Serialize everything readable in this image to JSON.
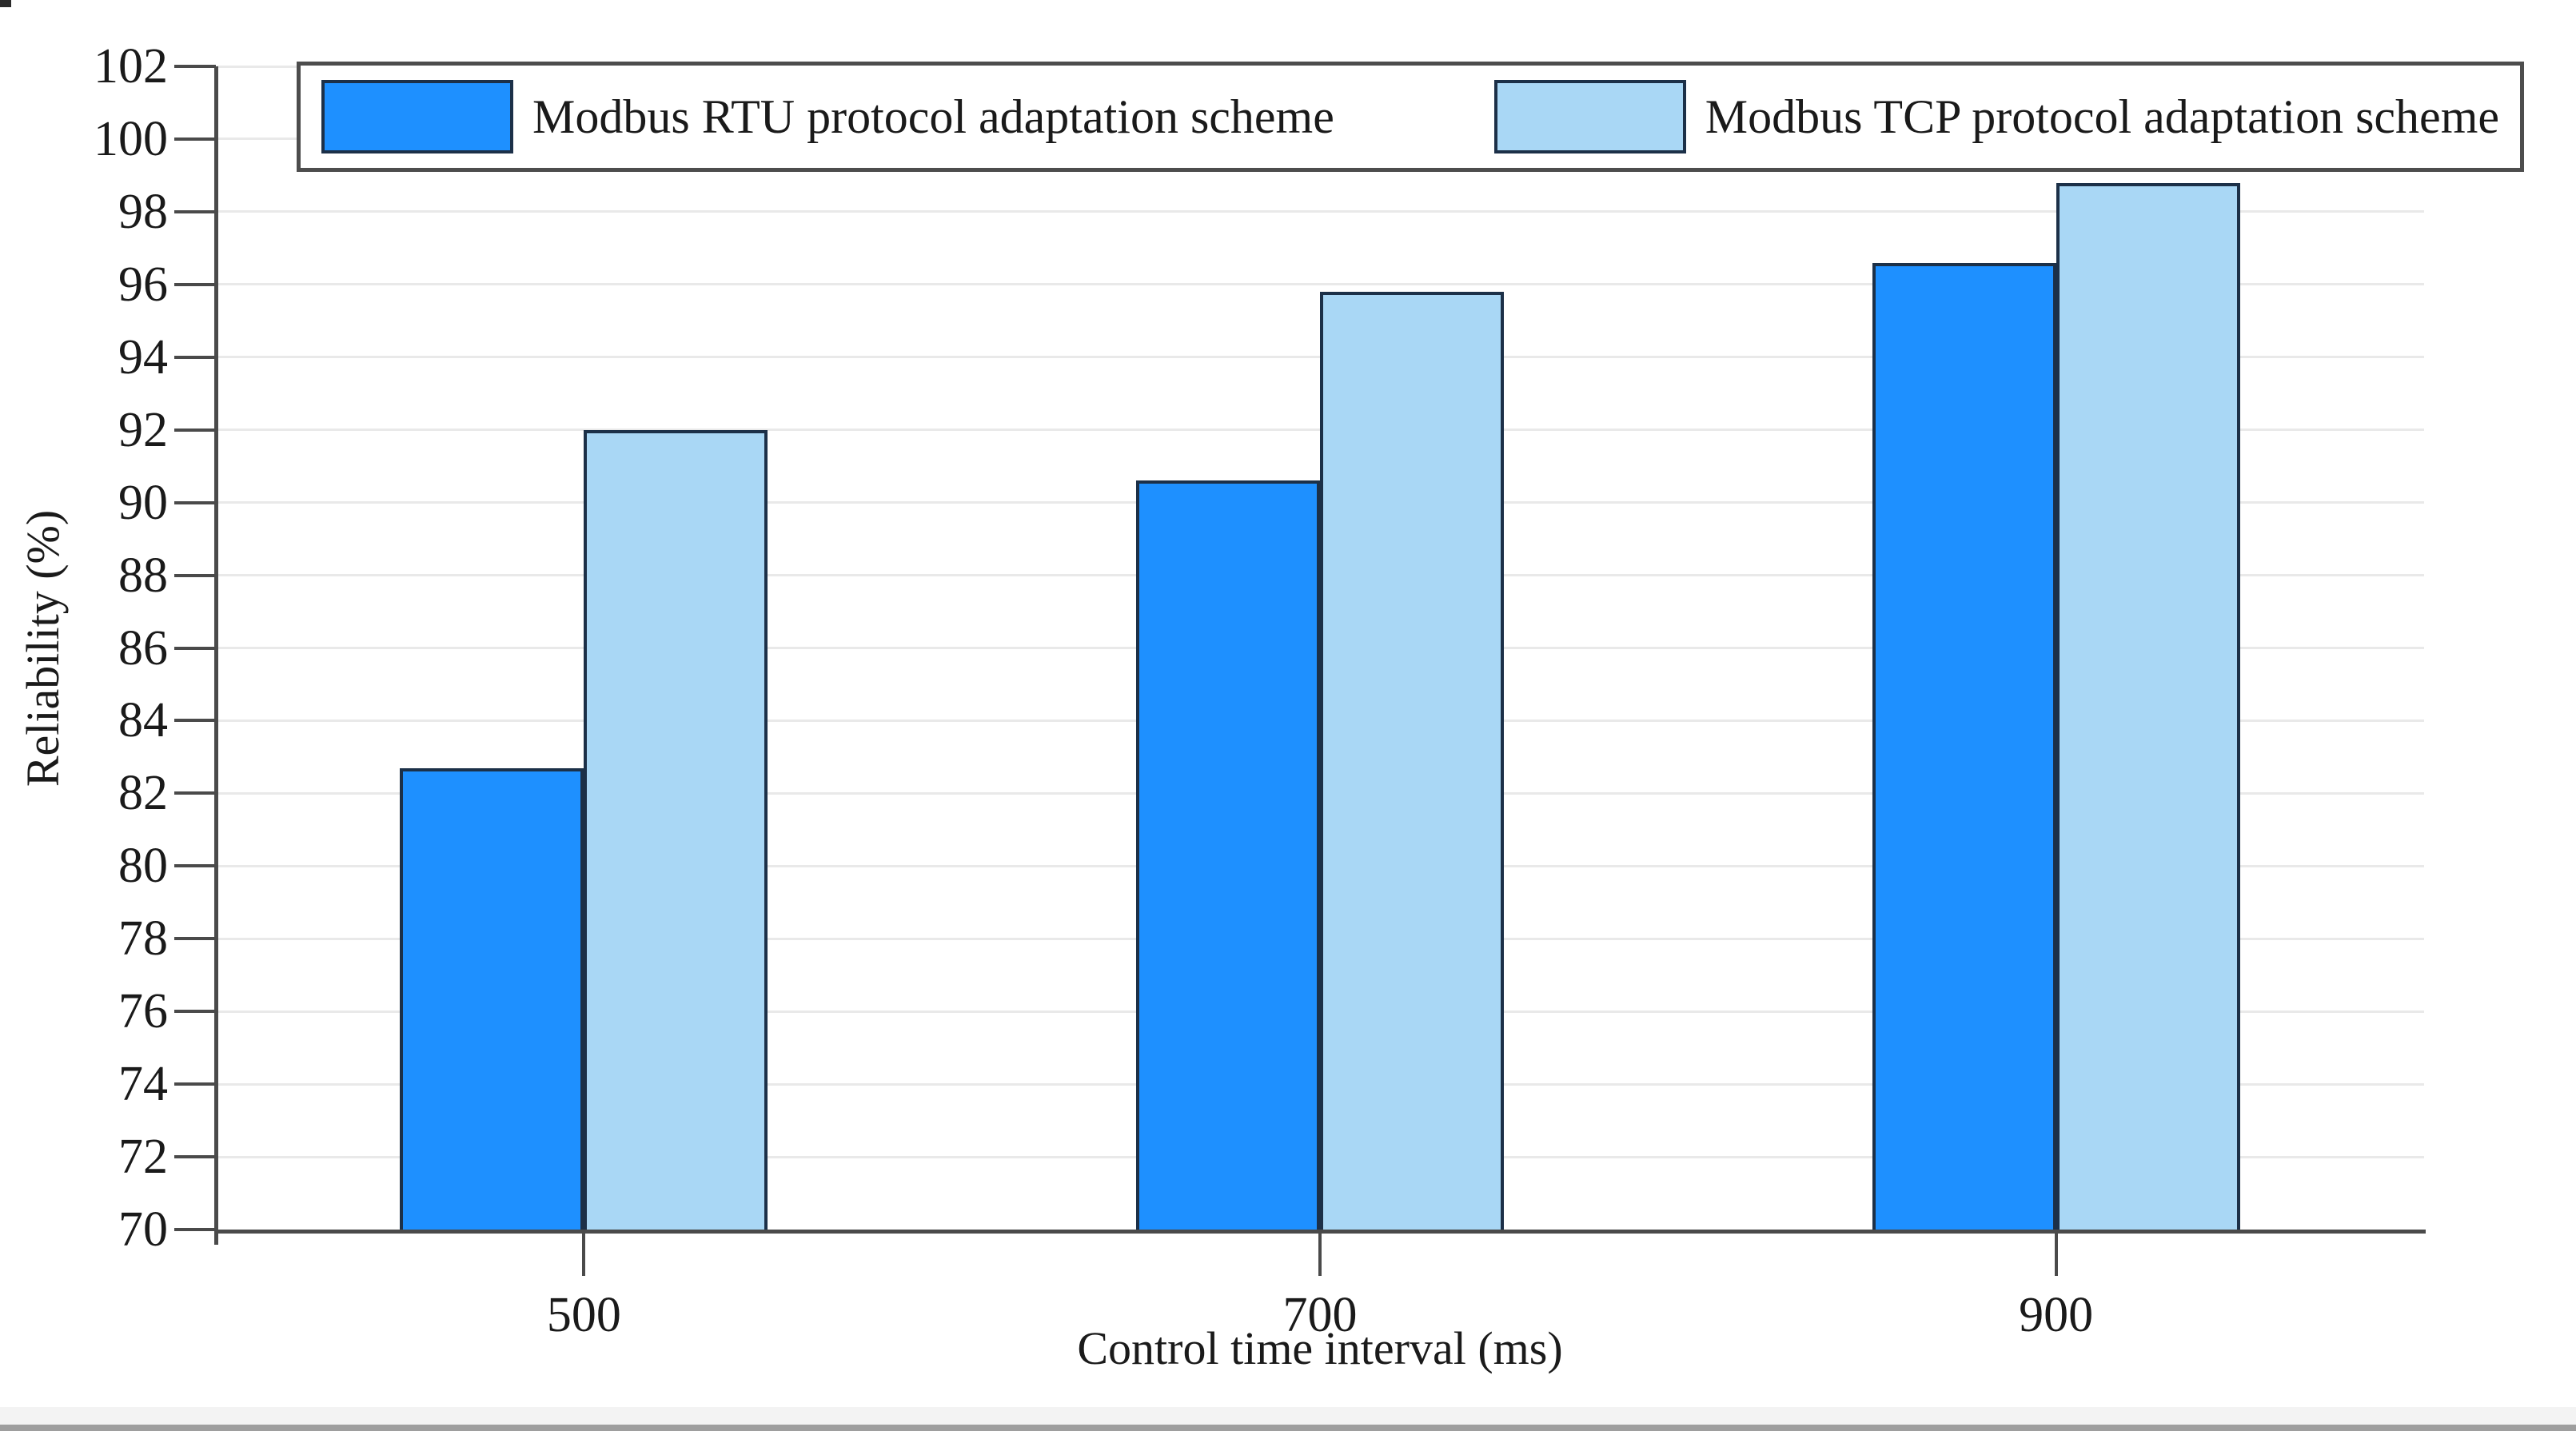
{
  "chart_data": {
    "type": "bar",
    "title": "",
    "categories": [
      "500",
      "700",
      "900"
    ],
    "series": [
      {
        "name": "Modbus RTU protocol adaptation scheme",
        "values": [
          82.7,
          90.6,
          96.6
        ],
        "color": "#1e90ff"
      },
      {
        "name": "Modbus TCP protocol adaptation scheme",
        "values": [
          92.0,
          95.8,
          98.8
        ],
        "color": "#a9d7f5"
      }
    ],
    "xlabel": "Control time interval (ms)",
    "ylabel": "Reliability (%)",
    "ylim": [
      70,
      102
    ],
    "ytick_step": 2,
    "grid": true,
    "legend_position": "top-inside",
    "bar_edge_color": "#1c3048",
    "axis_color": "#4a4a4a",
    "grid_color": "#e9e9e9",
    "text_color": "#1a1a1a"
  }
}
